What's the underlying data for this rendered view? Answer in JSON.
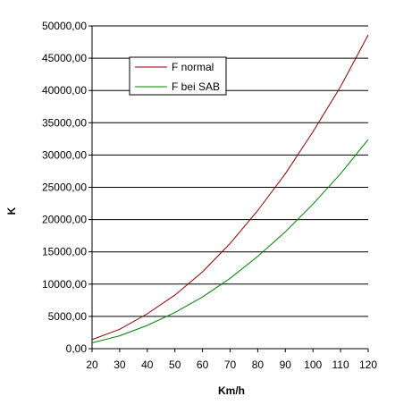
{
  "chart_data": {
    "type": "line",
    "xlabel": "Km/h",
    "ylabel": "K",
    "xlim": [
      20,
      120
    ],
    "ylim": [
      0,
      50000
    ],
    "x_ticks": [
      "20",
      "30",
      "40",
      "50",
      "60",
      "70",
      "80",
      "90",
      "100",
      "110",
      "120"
    ],
    "y_ticks": [
      "0,00",
      "5000,00",
      "10000,00",
      "15000,00",
      "20000,00",
      "25000,00",
      "30000,00",
      "35000,00",
      "40000,00",
      "45000,00",
      "50000,00"
    ],
    "grid": "horizontal",
    "legend_position": "top-left",
    "series": [
      {
        "name": "F normal",
        "color": "#8b0000",
        "x": [
          20,
          30,
          40,
          50,
          60,
          70,
          80,
          90,
          100,
          110,
          120
        ],
        "y": [
          1400,
          3000,
          5400,
          8300,
          11900,
          16300,
          21400,
          27100,
          33600,
          40600,
          48600
        ]
      },
      {
        "name": "F bei SAB",
        "color": "#008000",
        "x": [
          20,
          30,
          40,
          50,
          60,
          70,
          80,
          90,
          100,
          110,
          120
        ],
        "y": [
          900,
          2000,
          3600,
          5600,
          8000,
          10900,
          14300,
          18100,
          22400,
          27100,
          32400
        ]
      }
    ]
  }
}
